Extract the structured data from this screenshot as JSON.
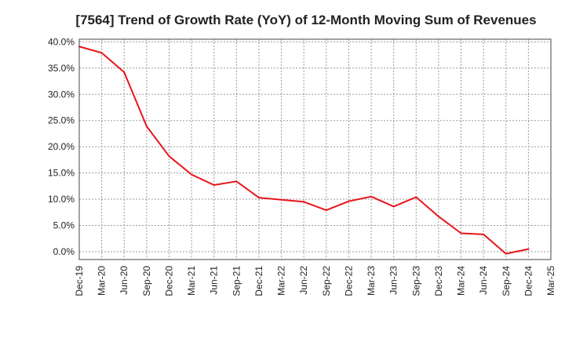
{
  "chart_data": {
    "type": "line",
    "title": "[7564]  Trend of Growth Rate (YoY) of 12-Month Moving Sum of Revenues",
    "xlabel": "",
    "ylabel": "",
    "x": [
      "Dec-19",
      "Mar-20",
      "Jun-20",
      "Sep-20",
      "Dec-20",
      "Mar-21",
      "Jun-21",
      "Sep-21",
      "Dec-21",
      "Mar-22",
      "Jun-22",
      "Sep-22",
      "Dec-22",
      "Mar-23",
      "Jun-23",
      "Sep-23",
      "Dec-23",
      "Mar-24",
      "Jun-24",
      "Sep-24",
      "Dec-24",
      "Mar-25"
    ],
    "y_ticks": [
      "0.0%",
      "5.0%",
      "10.0%",
      "15.0%",
      "20.0%",
      "25.0%",
      "30.0%",
      "35.0%",
      "40.0%"
    ],
    "ylim": [
      -1.5,
      40.5
    ],
    "grid": true,
    "series": [
      {
        "color": "#e8151b",
        "values": [
          39.1,
          37.9,
          34.2,
          23.9,
          18.2,
          14.7,
          12.7,
          13.4,
          10.3,
          9.9,
          9.5,
          7.9,
          9.6,
          10.5,
          8.6,
          10.4,
          6.7,
          3.5,
          3.3,
          -0.4,
          0.5,
          null
        ]
      }
    ]
  }
}
